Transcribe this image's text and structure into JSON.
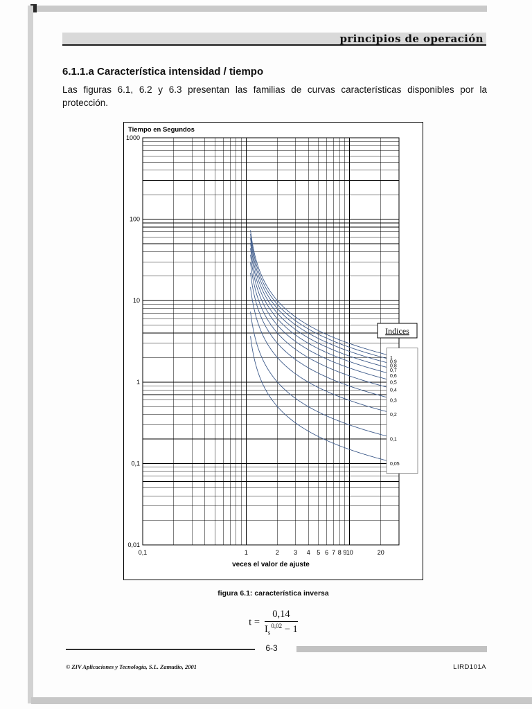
{
  "page": {
    "header_title": "principios de operación",
    "section_heading": "6.1.1.a Característica intensidad / tiempo",
    "paragraph": "Las figuras 6.1, 6.2 y 6.3 presentan las familias de curvas características disponibles por la protección.",
    "figure_caption": "figura 6.1: característica inversa",
    "formula": {
      "lhs": "t =",
      "numerator": "0,14",
      "den_base": "I",
      "den_sub": "s",
      "den_sup": "0,02",
      "den_rest": " − 1"
    },
    "footer": {
      "page_number": "6-3",
      "copyright": "© ZIV Aplicaciones y Tecnología, S.L. Zamudio, 2001",
      "doc_code": "LIRD101A"
    }
  },
  "chart_data": {
    "type": "line",
    "title": "",
    "ylabel": "Tiempo en Segundos",
    "xlabel": "veces el valor de ajuste",
    "x_scale": "log",
    "y_scale": "log",
    "xlim": [
      0.1,
      30
    ],
    "ylim": [
      0.01,
      1000
    ],
    "grid": true,
    "x_ticks": [
      {
        "value": 0.1,
        "label": "0,1"
      },
      {
        "value": 1,
        "label": "1"
      },
      {
        "value": 2,
        "label": "2"
      },
      {
        "value": 3,
        "label": "3"
      },
      {
        "value": 4,
        "label": "4"
      },
      {
        "value": 5,
        "label": "5"
      },
      {
        "value": 6,
        "label": "6"
      },
      {
        "value": 7,
        "label": "7"
      },
      {
        "value": 8,
        "label": "8"
      },
      {
        "value": 9,
        "label": "9"
      },
      {
        "value": 10,
        "label": "10"
      },
      {
        "value": 20,
        "label": "20"
      }
    ],
    "y_ticks": [
      {
        "value": 1000,
        "label": "1000"
      },
      {
        "value": 100,
        "label": "100"
      },
      {
        "value": 10,
        "label": "10"
      },
      {
        "value": 1,
        "label": "1"
      },
      {
        "value": 0.1,
        "label": "0,1"
      },
      {
        "value": 0.01,
        "label": "0,01"
      }
    ],
    "legend_title": "Indices",
    "legend_position": "right",
    "series": [
      {
        "name": "1",
        "index": 1
      },
      {
        "name": "0,9",
        "index": 0.9
      },
      {
        "name": "0,8",
        "index": 0.8
      },
      {
        "name": "0,7",
        "index": 0.7
      },
      {
        "name": "0,6",
        "index": 0.6
      },
      {
        "name": "0,5",
        "index": 0.5
      },
      {
        "name": "0,4",
        "index": 0.4
      },
      {
        "name": "0,3",
        "index": 0.3
      },
      {
        "name": "0,2",
        "index": 0.2
      },
      {
        "name": "0,1",
        "index": 0.1
      },
      {
        "name": "0,05",
        "index": 0.05
      }
    ],
    "curve_formula": "t = index * 0.14 / (I^0.02 - 1)",
    "curve_x_start": 1.1,
    "curve_x_end": 30,
    "line_color": "#3d5a8a"
  }
}
